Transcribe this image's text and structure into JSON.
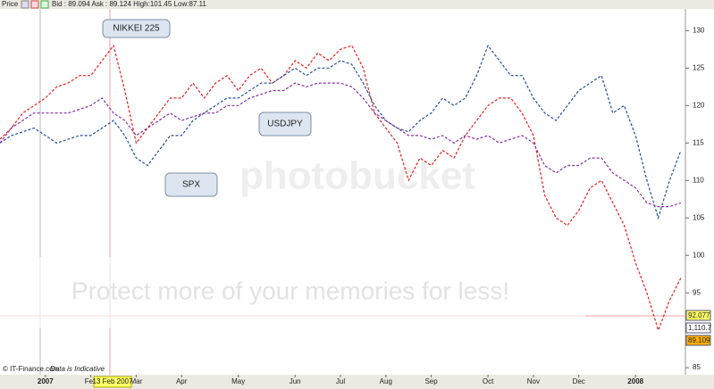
{
  "chart_data": {
    "type": "line",
    "header": {
      "label": "Price",
      "quote": "Bid : 89.094 Ask : 89.124 High:101.45 Low:87.11"
    },
    "footer": {
      "source": "© IT-Finance.com",
      "note": "Data is Indicative"
    },
    "cursor_date": "13 Feb 2007",
    "watermark": {
      "brand": "photobucket",
      "slogan": "Protect more of your memories for less!"
    },
    "price_markers": [
      {
        "label": "92.077",
        "color": "#ffff66"
      },
      {
        "label": "1,110.7",
        "color": "#ffffff"
      },
      {
        "label": "89.109",
        "color": "#ffb000"
      }
    ],
    "categories": [
      null,
      null,
      null,
      null,
      "2007",
      null,
      null,
      null,
      "Feb",
      null,
      null,
      null,
      "Mar",
      null,
      null,
      null,
      "Apr",
      null,
      null,
      null,
      null,
      "May",
      null,
      null,
      null,
      null,
      "Jun",
      null,
      null,
      null,
      "Jul",
      null,
      null,
      null,
      "Aug",
      null,
      null,
      null,
      "Sep",
      null,
      null,
      null,
      null,
      "Oct",
      null,
      null,
      null,
      "Nov",
      null,
      null,
      null,
      "Dec",
      null,
      null,
      null,
      null,
      "2008",
      null,
      null,
      null,
      null
    ],
    "series": [
      {
        "name": "NIKKEI 225",
        "color": "#e3201b",
        "values": [
          115.5,
          117,
          119,
          120,
          121,
          122.5,
          123,
          124,
          124,
          126,
          128,
          122,
          115,
          117,
          119,
          121,
          121,
          123,
          121,
          123,
          124,
          122,
          124,
          125,
          123,
          124,
          126,
          125,
          127,
          126,
          127.5,
          128,
          125,
          119,
          117,
          115,
          110,
          113,
          112,
          114,
          113,
          116,
          118,
          120,
          121,
          121,
          119,
          116,
          108,
          105,
          104,
          106,
          109,
          110,
          107,
          104,
          99,
          95,
          90,
          94,
          97
        ]
      },
      {
        "name": "SPX",
        "color": "#1f4f9c",
        "values": [
          115,
          116,
          116.5,
          117,
          116,
          115,
          115.5,
          116,
          116,
          117,
          118,
          116,
          113,
          112,
          114,
          116,
          116,
          118,
          119,
          120,
          121,
          121,
          122,
          123,
          123,
          124,
          125,
          124,
          125,
          125,
          126,
          125.5,
          123,
          120,
          118,
          117,
          116.5,
          118,
          119,
          121,
          120,
          121,
          124,
          128,
          126,
          124,
          124,
          121,
          119,
          118,
          120,
          122,
          123,
          124,
          119,
          120,
          116,
          110,
          105,
          110,
          114
        ]
      },
      {
        "name": "USDJPY",
        "color": "#8a2ba6",
        "values": [
          115,
          117,
          118,
          119,
          119,
          119,
          119,
          119.5,
          120,
          121,
          119,
          118,
          116,
          117,
          118,
          119,
          118,
          118.5,
          119,
          119,
          120,
          120,
          121,
          121.5,
          122,
          122,
          123,
          122.5,
          123,
          123,
          123,
          122.5,
          121,
          119,
          118,
          117,
          116,
          116,
          115.5,
          116,
          115,
          116,
          115.5,
          116,
          115,
          115.5,
          116,
          115,
          112,
          111,
          112,
          112,
          113,
          113,
          111,
          110,
          109,
          107,
          106.5,
          106.5,
          107
        ]
      }
    ],
    "ylim": [
      84.3,
      132.9
    ],
    "yticks": [
      85,
      90,
      95,
      100,
      105,
      110,
      115,
      120,
      125,
      130
    ],
    "grid": false
  }
}
